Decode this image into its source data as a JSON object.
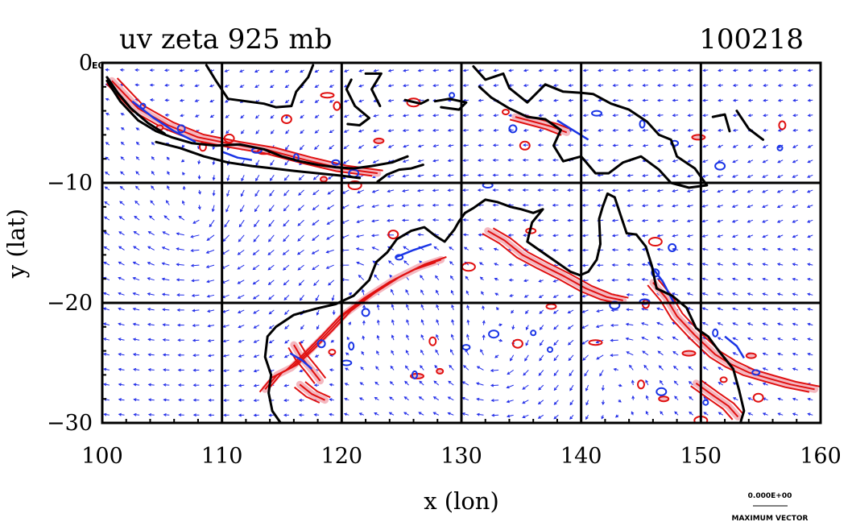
{
  "chart_data": {
    "type": "vector_field_contour_map",
    "title_left": "uv zeta 925 mb",
    "title_right": "100218",
    "xlabel": "x (lon)",
    "ylabel": "y (lat)",
    "xlim": [
      100,
      160
    ],
    "ylim": [
      -30,
      0
    ],
    "x_ticks": [
      "100",
      "110",
      "120",
      "130",
      "140",
      "150",
      "160"
    ],
    "y_ticks": [
      "0",
      "−10",
      "−20",
      "−30"
    ],
    "y_top_exponent": "E0",
    "grid": true,
    "reference_vector_label": "0.000E+00",
    "reference_vector_caption": "MAXIMUM VECTOR",
    "colors": {
      "vectors": "#1f2be8",
      "positive_contour": "#e01010",
      "positive_fill": "#f4b8c0",
      "negative_contour": "#1a35e6",
      "coastline": "#000000",
      "grid": "#000000"
    },
    "coastlines": [
      [
        [
          100.4,
          -1.5
        ],
        [
          101.5,
          -3.2
        ],
        [
          103.0,
          -4.8
        ],
        [
          104.5,
          -5.7
        ],
        [
          105.8,
          -6.2
        ],
        [
          107.5,
          -6.7
        ],
        [
          109.5,
          -6.9
        ],
        [
          111.5,
          -6.8
        ],
        [
          113.5,
          -7.2
        ],
        [
          115.0,
          -7.8
        ],
        [
          116.5,
          -8.2
        ],
        [
          118.0,
          -8.5
        ],
        [
          119.5,
          -8.7
        ],
        [
          121.0,
          -8.8
        ],
        [
          122.5,
          -8.6
        ],
        [
          124.2,
          -8.3
        ],
        [
          125.5,
          -7.8
        ]
      ],
      [
        [
          100.4,
          -1.2
        ],
        [
          101.3,
          -2.5
        ],
        [
          102.4,
          -3.8
        ],
        [
          103.8,
          -5.0
        ],
        [
          105.2,
          -5.9
        ]
      ],
      [
        [
          104.5,
          -6.6
        ],
        [
          106.5,
          -7.1
        ],
        [
          108.5,
          -7.8
        ],
        [
          110.5,
          -8.3
        ],
        [
          112.5,
          -8.6
        ],
        [
          114.3,
          -8.8
        ],
        [
          116.0,
          -9.0
        ],
        [
          118.0,
          -9.2
        ],
        [
          120.0,
          -9.4
        ],
        [
          121.5,
          -9.6
        ]
      ],
      [
        [
          123.0,
          -9.9
        ],
        [
          123.8,
          -9.3
        ],
        [
          124.8,
          -8.9
        ],
        [
          125.8,
          -8.8
        ],
        [
          126.8,
          -8.5
        ]
      ],
      [
        [
          108.7,
          -0.2
        ],
        [
          109.5,
          -1.5
        ],
        [
          110.5,
          -3.0
        ],
        [
          112.0,
          -3.2
        ],
        [
          113.5,
          -3.4
        ],
        [
          114.5,
          -3.7
        ],
        [
          115.8,
          -3.6
        ],
        [
          116.2,
          -2.4
        ],
        [
          117.2,
          -1.2
        ],
        [
          117.6,
          -0.2
        ]
      ],
      [
        [
          120.8,
          -1.4
        ],
        [
          120.4,
          -2.2
        ],
        [
          121.1,
          -3.6
        ],
        [
          122.3,
          -4.6
        ],
        [
          121.5,
          -5.2
        ],
        [
          120.5,
          -5.1
        ]
      ],
      [
        [
          122.0,
          -0.9
        ],
        [
          123.3,
          -0.9
        ],
        [
          122.5,
          -2.2
        ],
        [
          123.2,
          -3.6
        ]
      ],
      [
        [
          125.3,
          -3.1
        ],
        [
          126.6,
          -3.4
        ],
        [
          127.2,
          -3.1
        ]
      ],
      [
        [
          127.8,
          -3.2
        ],
        [
          129.0,
          -3.0
        ],
        [
          130.4,
          -3.3
        ],
        [
          129.8,
          -3.9
        ],
        [
          128.3,
          -3.7
        ]
      ],
      [
        [
          131.0,
          -0.3
        ],
        [
          132.0,
          -1.4
        ],
        [
          133.5,
          -0.9
        ],
        [
          134.0,
          -2.1
        ],
        [
          135.5,
          -3.3
        ],
        [
          137.0,
          -1.8
        ],
        [
          138.5,
          -2.4
        ],
        [
          140.0,
          -2.5
        ],
        [
          141.0,
          -2.6
        ],
        [
          142.5,
          -3.4
        ],
        [
          144.0,
          -3.9
        ],
        [
          145.5,
          -4.9
        ],
        [
          146.5,
          -6.0
        ],
        [
          147.5,
          -6.4
        ],
        [
          148.0,
          -7.8
        ],
        [
          149.5,
          -8.8
        ],
        [
          150.5,
          -10.2
        ],
        [
          149.0,
          -10.4
        ],
        [
          147.5,
          -10.0
        ],
        [
          146.5,
          -8.9
        ],
        [
          145.0,
          -7.8
        ],
        [
          143.5,
          -8.3
        ],
        [
          142.3,
          -9.2
        ],
        [
          141.2,
          -9.2
        ],
        [
          140.0,
          -7.8
        ],
        [
          138.5,
          -8.2
        ],
        [
          137.7,
          -6.9
        ],
        [
          138.3,
          -5.6
        ],
        [
          137.0,
          -4.7
        ],
        [
          135.5,
          -4.5
        ],
        [
          134.0,
          -3.8
        ],
        [
          132.5,
          -2.9
        ],
        [
          131.5,
          -2.0
        ]
      ],
      [
        [
          151.0,
          -4.5
        ],
        [
          152.0,
          -4.3
        ],
        [
          152.4,
          -5.7
        ]
      ],
      [
        [
          153.0,
          -4.0
        ],
        [
          154.0,
          -5.5
        ],
        [
          155.2,
          -6.4
        ]
      ],
      [
        [
          114.1,
          -26.0
        ],
        [
          113.6,
          -24.5
        ],
        [
          113.8,
          -22.8
        ],
        [
          114.5,
          -22.0
        ],
        [
          116.0,
          -21.0
        ],
        [
          117.8,
          -20.5
        ],
        [
          119.5,
          -20.1
        ],
        [
          121.0,
          -19.4
        ],
        [
          122.3,
          -18.1
        ],
        [
          122.9,
          -16.6
        ],
        [
          123.8,
          -15.8
        ],
        [
          124.6,
          -14.7
        ],
        [
          125.8,
          -14.0
        ],
        [
          126.9,
          -13.7
        ],
        [
          127.8,
          -14.4
        ],
        [
          128.6,
          -14.9
        ],
        [
          129.4,
          -13.9
        ],
        [
          129.8,
          -13.2
        ],
        [
          130.3,
          -12.5
        ],
        [
          131.0,
          -12.1
        ],
        [
          132.0,
          -11.4
        ],
        [
          133.0,
          -11.6
        ],
        [
          134.1,
          -12.0
        ],
        [
          135.0,
          -12.2
        ],
        [
          136.0,
          -12.5
        ],
        [
          136.8,
          -12.2
        ],
        [
          135.9,
          -13.3
        ],
        [
          135.5,
          -14.9
        ],
        [
          136.5,
          -15.6
        ],
        [
          137.8,
          -16.5
        ],
        [
          139.1,
          -17.4
        ],
        [
          139.9,
          -17.7
        ],
        [
          140.6,
          -17.4
        ],
        [
          141.3,
          -16.4
        ],
        [
          141.6,
          -15.1
        ],
        [
          141.5,
          -13.0
        ],
        [
          141.8,
          -12.0
        ],
        [
          142.2,
          -10.9
        ],
        [
          142.8,
          -11.2
        ],
        [
          143.3,
          -12.7
        ],
        [
          143.8,
          -14.2
        ],
        [
          144.6,
          -14.3
        ],
        [
          145.4,
          -15.3
        ],
        [
          145.9,
          -16.9
        ],
        [
          146.3,
          -18.8
        ],
        [
          147.6,
          -19.4
        ],
        [
          148.8,
          -20.4
        ],
        [
          149.6,
          -22.1
        ],
        [
          150.6,
          -22.8
        ],
        [
          151.5,
          -24.0
        ],
        [
          152.7,
          -25.5
        ],
        [
          153.2,
          -27.3
        ],
        [
          153.6,
          -29.0
        ],
        [
          153.3,
          -30.0
        ]
      ],
      [
        [
          114.1,
          -26.0
        ],
        [
          113.9,
          -27.5
        ],
        [
          114.2,
          -29.0
        ],
        [
          114.9,
          -30.0
        ]
      ]
    ],
    "positive_vorticity_bands": [
      [
        [
          100.8,
          -1.5
        ],
        [
          103.0,
          -3.8
        ],
        [
          105.5,
          -5.2
        ],
        [
          108.0,
          -6.2
        ],
        [
          111.0,
          -6.8
        ],
        [
          114.0,
          -7.3
        ],
        [
          117.0,
          -8.1
        ],
        [
          120.0,
          -8.8
        ],
        [
          123.0,
          -9.2
        ]
      ],
      [
        [
          113.6,
          -27.2
        ],
        [
          114.6,
          -26.0
        ],
        [
          115.8,
          -25.4
        ],
        [
          117.2,
          -24.1
        ],
        [
          118.7,
          -22.6
        ],
        [
          120.3,
          -20.9
        ],
        [
          122.3,
          -19.4
        ],
        [
          124.5,
          -18.0
        ],
        [
          126.5,
          -17.0
        ],
        [
          128.3,
          -16.4
        ]
      ],
      [
        [
          132.2,
          -14.0
        ],
        [
          133.6,
          -14.8
        ],
        [
          135.1,
          -16.0
        ],
        [
          136.8,
          -16.9
        ],
        [
          138.6,
          -17.8
        ],
        [
          140.4,
          -18.8
        ],
        [
          142.1,
          -19.5
        ],
        [
          143.5,
          -19.8
        ]
      ],
      [
        [
          146.0,
          -18.3
        ],
        [
          147.1,
          -19.6
        ],
        [
          148.0,
          -21.1
        ],
        [
          149.5,
          -22.7
        ],
        [
          151.2,
          -24.3
        ],
        [
          152.5,
          -25.1
        ],
        [
          154.0,
          -25.8
        ],
        [
          155.7,
          -26.3
        ],
        [
          157.5,
          -26.8
        ],
        [
          159.5,
          -27.2
        ]
      ],
      [
        [
          134.5,
          -4.5
        ],
        [
          136.0,
          -4.9
        ],
        [
          137.5,
          -5.3
        ],
        [
          138.8,
          -5.8
        ]
      ],
      [
        [
          116.0,
          -23.5
        ],
        [
          116.6,
          -24.5
        ],
        [
          117.5,
          -25.6
        ],
        [
          118.2,
          -26.5
        ]
      ],
      [
        [
          116.5,
          -26.8
        ],
        [
          117.5,
          -27.6
        ],
        [
          118.6,
          -28.1
        ]
      ],
      [
        [
          149.6,
          -26.7
        ],
        [
          151.0,
          -27.7
        ],
        [
          152.3,
          -28.6
        ],
        [
          153.1,
          -29.5
        ]
      ]
    ],
    "negative_vorticity_bands": [
      [
        [
          102.5,
          -3.2
        ],
        [
          104.3,
          -4.6
        ],
        [
          106.0,
          -5.7
        ],
        [
          107.8,
          -6.6
        ]
      ],
      [
        [
          124.5,
          -16.2
        ],
        [
          126.0,
          -15.6
        ],
        [
          127.5,
          -15.1
        ]
      ],
      [
        [
          145.6,
          -16.6
        ],
        [
          146.8,
          -18.2
        ],
        [
          147.8,
          -20.1
        ]
      ],
      [
        [
          138.0,
          -4.8
        ],
        [
          139.3,
          -5.6
        ],
        [
          140.6,
          -6.4
        ]
      ],
      [
        [
          115.7,
          -24.2
        ],
        [
          116.7,
          -24.8
        ],
        [
          117.5,
          -25.5
        ]
      ],
      [
        [
          152.0,
          -22.8
        ],
        [
          153.0,
          -23.6
        ],
        [
          153.6,
          -24.6
        ]
      ],
      [
        [
          110.0,
          -7.4
        ],
        [
          111.3,
          -7.9
        ],
        [
          112.5,
          -8.1
        ]
      ]
    ],
    "positive_vorticity_spots": [
      [
        104.8,
        -5.4
      ],
      [
        115.4,
        -4.7
      ],
      [
        118.8,
        -2.7
      ],
      [
        119.6,
        -3.6
      ],
      [
        123.1,
        -6.5
      ],
      [
        126.0,
        -3.3
      ],
      [
        133.7,
        -4.1
      ],
      [
        135.3,
        -6.9
      ],
      [
        149.8,
        -6.2
      ],
      [
        156.8,
        -5.2
      ],
      [
        135.8,
        -14.0
      ],
      [
        130.6,
        -17.0
      ],
      [
        128.2,
        -25.7
      ],
      [
        134.7,
        -23.4
      ],
      [
        141.2,
        -23.3
      ],
      [
        145.0,
        -26.8
      ],
      [
        146.9,
        -28.0
      ],
      [
        150.0,
        -29.8
      ],
      [
        151.9,
        -26.4
      ],
      [
        154.8,
        -27.9
      ],
      [
        149.0,
        -24.2
      ],
      [
        145.4,
        -20.1
      ],
      [
        137.5,
        -20.3
      ],
      [
        121.1,
        -10.2
      ],
      [
        118.5,
        -9.7
      ],
      [
        110.6,
        -6.3
      ],
      [
        113.5,
        -7.4
      ],
      [
        108.4,
        -7.0
      ],
      [
        154.2,
        -24.4
      ],
      [
        146.2,
        -14.9
      ],
      [
        119.2,
        -24.1
      ],
      [
        124.3,
        -14.3
      ],
      [
        126.3,
        -26.1
      ],
      [
        127.6,
        -23.2
      ]
    ],
    "negative_vorticity_spots": [
      [
        103.4,
        -3.6
      ],
      [
        106.6,
        -5.5
      ],
      [
        112.9,
        -7.3
      ],
      [
        116.2,
        -7.9
      ],
      [
        119.5,
        -8.3
      ],
      [
        121.0,
        -9.2
      ],
      [
        129.2,
        -2.7
      ],
      [
        134.3,
        -5.5
      ],
      [
        141.3,
        -4.2
      ],
      [
        145.1,
        -5.1
      ],
      [
        147.8,
        -6.7
      ],
      [
        151.6,
        -8.6
      ],
      [
        156.6,
        -7.1
      ],
      [
        118.3,
        -23.4
      ],
      [
        120.4,
        -25.0
      ],
      [
        126.1,
        -26.0
      ],
      [
        130.4,
        -23.7
      ],
      [
        132.7,
        -22.6
      ],
      [
        136.0,
        -22.5
      ],
      [
        146.2,
        -17.5
      ],
      [
        145.3,
        -19.9
      ],
      [
        151.2,
        -22.5
      ],
      [
        154.6,
        -25.8
      ],
      [
        146.7,
        -27.4
      ],
      [
        150.4,
        -28.3
      ],
      [
        147.6,
        -15.4
      ],
      [
        132.2,
        -10.2
      ],
      [
        120.8,
        -23.6
      ],
      [
        124.8,
        -16.2
      ],
      [
        142.8,
        -20.2
      ],
      [
        137.4,
        -23.9
      ],
      [
        122.0,
        -20.8
      ]
    ]
  }
}
